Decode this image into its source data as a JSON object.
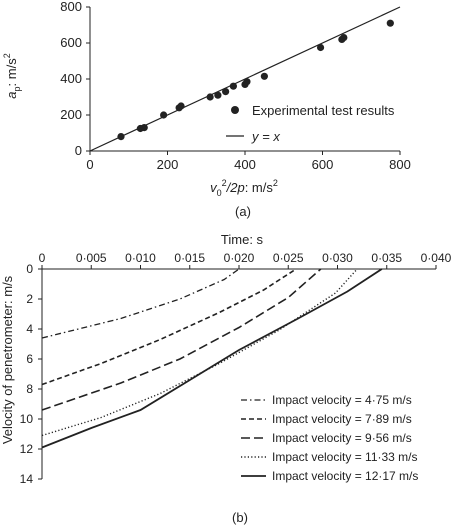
{
  "chart_data": [
    {
      "type": "scatter",
      "panel_label": "(a)",
      "xlabel": "v0²/2p: m/s²",
      "ylabel": "ap: m/s²",
      "xlim": [
        0,
        800
      ],
      "ylim": [
        0,
        800
      ],
      "x_ticks": [
        "0",
        "200",
        "400",
        "600",
        "800"
      ],
      "y_ticks": [
        "0",
        "200",
        "400",
        "600",
        "800"
      ],
      "grid": false,
      "legend_position": "right",
      "series": [
        {
          "name": "Experimental test results",
          "kind": "points",
          "x": [
            80,
            130,
            140,
            190,
            230,
            235,
            310,
            330,
            350,
            370,
            400,
            405,
            450,
            595,
            650,
            655,
            775
          ],
          "y": [
            80,
            125,
            130,
            200,
            240,
            250,
            300,
            310,
            330,
            360,
            370,
            385,
            415,
            575,
            620,
            630,
            710
          ]
        },
        {
          "name": "y = x",
          "kind": "line",
          "x": [
            0,
            800
          ],
          "y": [
            0,
            800
          ]
        }
      ]
    },
    {
      "type": "line",
      "panel_label": "(b)",
      "xlabel": "Time: s",
      "ylabel": "Velocity of penetrometer: m/s",
      "xlim": [
        0,
        0.04
      ],
      "ylim": [
        14,
        0
      ],
      "x_ticks": [
        "0",
        "0·005",
        "0·010",
        "0·015",
        "0·020",
        "0·025",
        "0·030",
        "0·035",
        "0·040"
      ],
      "y_ticks": [
        "0",
        "2",
        "4",
        "6",
        "8",
        "10",
        "12",
        "14"
      ],
      "grid": false,
      "legend_position": "bottom-right",
      "series": [
        {
          "name": "Impact velocity = 4·75 m/s",
          "style": "dashdot",
          "x": [
            0,
            0.008,
            0.014,
            0.0185,
            0.02
          ],
          "y": [
            4.6,
            3.3,
            2.0,
            0.7,
            0
          ]
        },
        {
          "name": "Impact velocity = 7·89 m/s",
          "style": "shortdash",
          "x": [
            0,
            0.006,
            0.012,
            0.018,
            0.0225,
            0.0258
          ],
          "y": [
            7.7,
            6.3,
            4.7,
            2.9,
            1.4,
            0
          ]
        },
        {
          "name": "Impact velocity = 9·56 m/s",
          "style": "longdash",
          "x": [
            0,
            0.008,
            0.014,
            0.02,
            0.025,
            0.0283
          ],
          "y": [
            9.4,
            7.6,
            6.0,
            3.9,
            1.9,
            0
          ]
        },
        {
          "name": "Impact velocity = 11·33 m/s",
          "style": "dotted",
          "x": [
            0,
            0.006,
            0.012,
            0.018,
            0.024,
            0.0298,
            0.032
          ],
          "y": [
            11.1,
            9.9,
            8.3,
            6.3,
            4.1,
            1.6,
            0
          ]
        },
        {
          "name": "Impact velocity = 12·17 m/s",
          "style": "solid",
          "x": [
            0,
            0.005,
            0.01,
            0.015,
            0.02,
            0.026,
            0.031,
            0.0345
          ],
          "y": [
            11.9,
            10.6,
            9.4,
            7.4,
            5.4,
            3.3,
            1.5,
            0
          ]
        }
      ]
    }
  ],
  "colors": {
    "ink": "#222222",
    "background": "#ffffff"
  }
}
